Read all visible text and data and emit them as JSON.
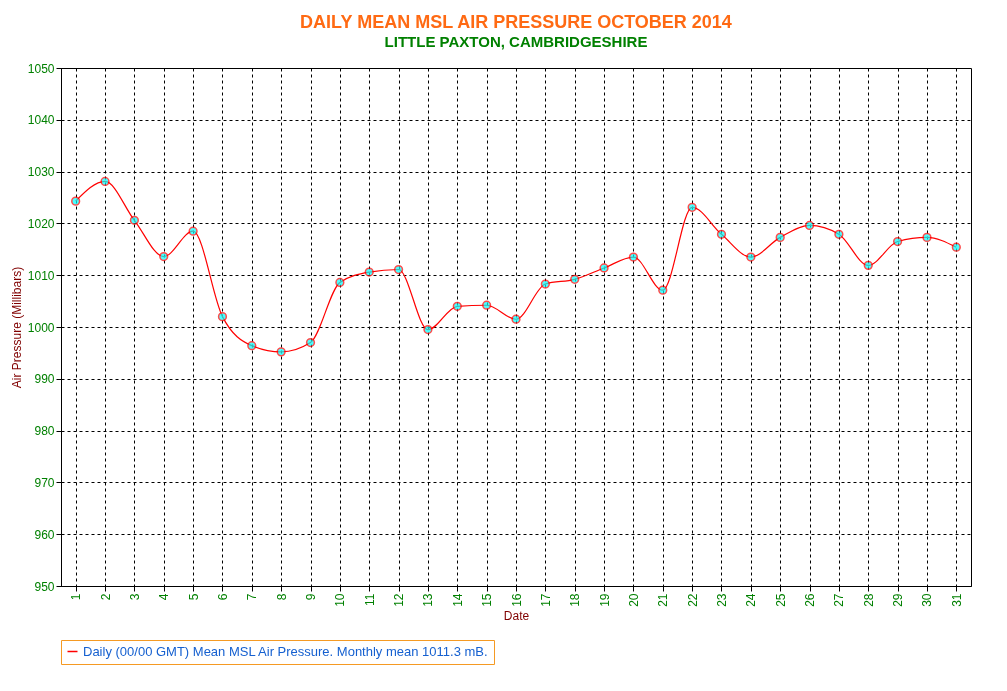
{
  "chart_data": {
    "type": "line",
    "title": "DAILY MEAN MSL AIR PRESSURE    OCTOBER 2014",
    "subtitle": "LITTLE PAXTON, CAMBRIDGESHIRE",
    "xlabel": "Date",
    "ylabel": "Air Pressure (Millibars)",
    "categories": [
      "1",
      "2",
      "3",
      "4",
      "5",
      "6",
      "7",
      "8",
      "9",
      "10",
      "11",
      "12",
      "13",
      "14",
      "15",
      "16",
      "17",
      "18",
      "19",
      "20",
      "21",
      "22",
      "23",
      "24",
      "25",
      "26",
      "27",
      "28",
      "29",
      "30",
      "31"
    ],
    "series": [
      {
        "name": "Daily (00/00 GMT) Mean MSL Air Pressure. Monthly mean 1011.3 mB.",
        "color": "#ff0000",
        "values": [
          1024.3,
          1028.1,
          1020.6,
          1013.6,
          1018.5,
          1002.0,
          996.4,
          995.2,
          997.0,
          1008.6,
          1010.6,
          1011.1,
          999.5,
          1004.0,
          1004.2,
          1001.5,
          1008.3,
          1009.2,
          1011.4,
          1013.5,
          1007.1,
          1023.1,
          1017.9,
          1013.5,
          1017.3,
          1019.6,
          1017.9,
          1011.9,
          1016.5,
          1017.3,
          1015.4
        ]
      }
    ],
    "ylim": [
      950,
      1050
    ],
    "yticks": [
      950,
      960,
      970,
      980,
      990,
      1000,
      1010,
      1020,
      1030,
      1040,
      1050
    ],
    "grid": true,
    "legend": "bottom",
    "marker": "circle",
    "line_style": "solid"
  }
}
